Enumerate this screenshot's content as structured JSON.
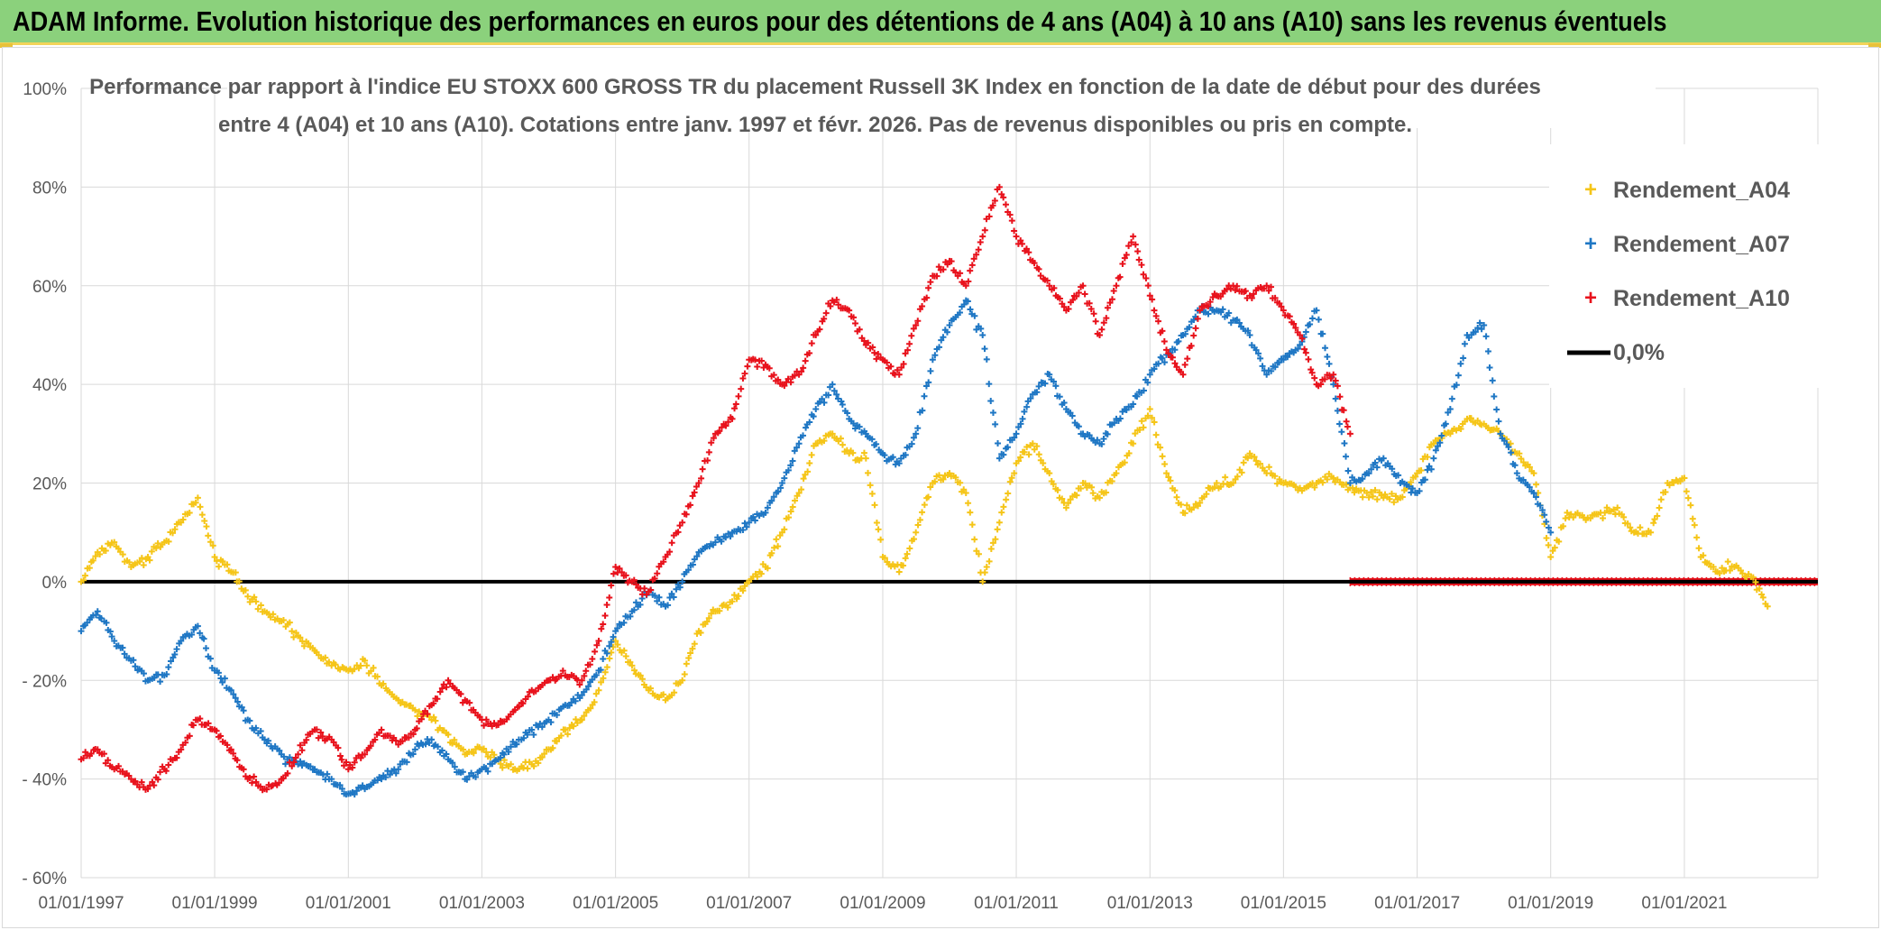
{
  "banner": {
    "title": "ADAM Informe. Evolution historique des performances en euros pour des détentions de 4 ans (A04) à 10 ans (A10) sans les revenus éventuels"
  },
  "colors": {
    "banner_bg": "#8bd17c",
    "banner_border": "#f2d45a",
    "a04": "#f5c518",
    "a07": "#1f77c4",
    "a10": "#e8121c",
    "zero_line": "#000000",
    "grid": "#d9d9d9",
    "text": "#595959"
  },
  "chart_data": {
    "type": "scatter",
    "title_line1": "Performance par rapport à l'indice EU STOXX 600 GROSS TR  du placement Russell 3K Index en fonction de la date de début pour des durées",
    "title_line2": "entre 4 (A04) et 10 ans (A10). Cotations entre janv. 1997 et févr. 2026. Pas de revenus disponibles ou pris en compte.",
    "xlim": [
      "1997-01-01",
      "2023-01-01"
    ],
    "ylim": [
      -0.6,
      1.0
    ],
    "x_ticks": [
      "01/01/1997",
      "01/01/1999",
      "01/01/2001",
      "01/01/2003",
      "01/01/2005",
      "01/01/2007",
      "01/01/2009",
      "01/01/2011",
      "01/01/2013",
      "01/01/2015",
      "01/01/2017",
      "01/01/2019",
      "01/01/2021"
    ],
    "y_ticks": [
      {
        "value": 1.0,
        "label": "100%"
      },
      {
        "value": 0.8,
        "label": "80%"
      },
      {
        "value": 0.6,
        "label": "60%"
      },
      {
        "value": 0.4,
        "label": "40%"
      },
      {
        "value": 0.2,
        "label": "20%"
      },
      {
        "value": 0.0,
        "label": "0%"
      },
      {
        "value": -0.2,
        "label": "- 20%"
      },
      {
        "value": -0.4,
        "label": "- 40%"
      },
      {
        "value": -0.6,
        "label": "- 60%"
      }
    ],
    "grid": "both",
    "legend_position": "top-right",
    "reference_line": {
      "name": "0,0%",
      "value": 0.0
    },
    "series": [
      {
        "name": "Rendement_A04",
        "color": "#f5c518",
        "x": [
          "1997-01-01",
          "1997-04-01",
          "1997-07-01",
          "1997-10-01",
          "1998-01-01",
          "1998-04-01",
          "1998-07-01",
          "1998-10-01",
          "1999-01-01",
          "1999-04-01",
          "1999-07-01",
          "1999-10-01",
          "2000-01-01",
          "2000-04-01",
          "2000-07-01",
          "2000-10-01",
          "2001-01-01",
          "2001-04-01",
          "2001-07-01",
          "2001-10-01",
          "2002-01-01",
          "2002-04-01",
          "2002-07-01",
          "2002-10-01",
          "2003-01-01",
          "2003-04-01",
          "2003-07-01",
          "2003-10-01",
          "2004-01-01",
          "2004-04-01",
          "2004-07-01",
          "2004-10-01",
          "2005-01-01",
          "2005-04-01",
          "2005-07-01",
          "2005-10-01",
          "2006-01-01",
          "2006-04-01",
          "2006-07-01",
          "2006-10-01",
          "2007-01-01",
          "2007-04-01",
          "2007-07-01",
          "2007-10-01",
          "2008-01-01",
          "2008-04-01",
          "2008-07-01",
          "2008-10-01",
          "2009-01-01",
          "2009-04-01",
          "2009-07-01",
          "2009-10-01",
          "2010-01-01",
          "2010-04-01",
          "2010-07-01",
          "2010-10-01",
          "2011-01-01",
          "2011-04-01",
          "2011-07-01",
          "2011-10-01",
          "2012-01-01",
          "2012-04-01",
          "2012-07-01",
          "2012-10-01",
          "2013-01-01",
          "2013-04-01",
          "2013-07-01",
          "2013-10-01",
          "2014-01-01",
          "2014-04-01",
          "2014-07-01",
          "2014-10-01",
          "2015-01-01",
          "2015-04-01",
          "2015-07-01",
          "2015-10-01",
          "2016-01-01",
          "2016-04-01",
          "2016-07-01",
          "2016-10-01",
          "2017-01-01",
          "2017-04-01",
          "2017-07-01",
          "2017-10-01",
          "2018-01-01",
          "2018-04-01",
          "2018-07-01",
          "2018-10-01",
          "2019-01-01",
          "2019-04-01",
          "2019-07-01",
          "2019-10-01",
          "2020-01-01",
          "2020-04-01",
          "2020-07-01",
          "2020-10-01",
          "2021-01-01",
          "2021-04-01",
          "2021-07-01",
          "2021-10-01",
          "2022-01-01",
          "2022-04-01"
        ],
        "y": [
          0.0,
          0.06,
          0.08,
          0.03,
          0.05,
          0.08,
          0.12,
          0.17,
          0.05,
          0.02,
          -0.03,
          -0.06,
          -0.08,
          -0.11,
          -0.14,
          -0.17,
          -0.18,
          -0.16,
          -0.21,
          -0.24,
          -0.26,
          -0.28,
          -0.31,
          -0.35,
          -0.34,
          -0.36,
          -0.38,
          -0.37,
          -0.34,
          -0.3,
          -0.28,
          -0.22,
          -0.12,
          -0.17,
          -0.22,
          -0.24,
          -0.2,
          -0.1,
          -0.06,
          -0.04,
          0.0,
          0.03,
          0.1,
          0.18,
          0.28,
          0.3,
          0.26,
          0.25,
          0.05,
          0.02,
          0.1,
          0.2,
          0.22,
          0.18,
          0.0,
          0.12,
          0.24,
          0.28,
          0.22,
          0.15,
          0.2,
          0.17,
          0.22,
          0.28,
          0.35,
          0.22,
          0.14,
          0.16,
          0.2,
          0.2,
          0.26,
          0.22,
          0.2,
          0.19,
          0.2,
          0.21,
          0.19,
          0.18,
          0.17,
          0.17,
          0.22,
          0.28,
          0.3,
          0.33,
          0.32,
          0.3,
          0.26,
          0.22,
          0.05,
          0.14,
          0.13,
          0.14,
          0.15,
          0.1,
          0.1,
          0.2,
          0.21,
          0.05,
          0.02,
          0.03,
          0.01,
          -0.05
        ]
      },
      {
        "name": "Rendement_A07",
        "color": "#1f77c4",
        "x": [
          "1997-01-01",
          "1997-04-01",
          "1997-07-01",
          "1997-10-01",
          "1998-01-01",
          "1998-04-01",
          "1998-07-01",
          "1998-10-01",
          "1999-01-01",
          "1999-04-01",
          "1999-07-01",
          "1999-10-01",
          "2000-01-01",
          "2000-04-01",
          "2000-07-01",
          "2000-10-01",
          "2001-01-01",
          "2001-04-01",
          "2001-07-01",
          "2001-10-01",
          "2002-01-01",
          "2002-04-01",
          "2002-07-01",
          "2002-10-01",
          "2003-01-01",
          "2003-04-01",
          "2003-07-01",
          "2003-10-01",
          "2004-01-01",
          "2004-04-01",
          "2004-07-01",
          "2004-10-01",
          "2005-01-01",
          "2005-04-01",
          "2005-07-01",
          "2005-10-01",
          "2006-01-01",
          "2006-04-01",
          "2006-07-01",
          "2006-10-01",
          "2007-01-01",
          "2007-04-01",
          "2007-07-01",
          "2007-10-01",
          "2008-01-01",
          "2008-04-01",
          "2008-07-01",
          "2008-10-01",
          "2009-01-01",
          "2009-04-01",
          "2009-07-01",
          "2009-10-01",
          "2010-01-01",
          "2010-04-01",
          "2010-07-01",
          "2010-10-01",
          "2011-01-01",
          "2011-04-01",
          "2011-07-01",
          "2011-10-01",
          "2012-01-01",
          "2012-04-01",
          "2012-07-01",
          "2012-10-01",
          "2013-01-01",
          "2013-04-01",
          "2013-07-01",
          "2013-10-01",
          "2014-01-01",
          "2014-04-01",
          "2014-07-01",
          "2014-10-01",
          "2015-01-01",
          "2015-04-01",
          "2015-07-01",
          "2015-10-01",
          "2016-01-01",
          "2016-04-01",
          "2016-07-01",
          "2016-10-01",
          "2017-01-01",
          "2017-04-01",
          "2017-07-01",
          "2017-10-01",
          "2018-01-01",
          "2018-04-01",
          "2018-07-01",
          "2018-10-01",
          "2019-01-01"
        ],
        "y": [
          -0.1,
          -0.06,
          -0.12,
          -0.16,
          -0.2,
          -0.19,
          -0.12,
          -0.09,
          -0.18,
          -0.22,
          -0.28,
          -0.32,
          -0.35,
          -0.37,
          -0.38,
          -0.4,
          -0.43,
          -0.42,
          -0.4,
          -0.38,
          -0.34,
          -0.32,
          -0.36,
          -0.4,
          -0.38,
          -0.36,
          -0.33,
          -0.3,
          -0.28,
          -0.25,
          -0.23,
          -0.18,
          -0.1,
          -0.06,
          -0.02,
          -0.05,
          0.0,
          0.06,
          0.08,
          0.1,
          0.12,
          0.14,
          0.2,
          0.28,
          0.35,
          0.4,
          0.33,
          0.3,
          0.26,
          0.24,
          0.3,
          0.45,
          0.52,
          0.57,
          0.5,
          0.25,
          0.3,
          0.38,
          0.42,
          0.35,
          0.3,
          0.28,
          0.33,
          0.36,
          0.42,
          0.46,
          0.5,
          0.55,
          0.55,
          0.53,
          0.5,
          0.42,
          0.45,
          0.48,
          0.55,
          0.4,
          0.2,
          0.22,
          0.25,
          0.2,
          0.18,
          0.25,
          0.35,
          0.5,
          0.52,
          0.3,
          0.22,
          0.18,
          0.1
        ]
      },
      {
        "name": "Rendement_A10",
        "color": "#e8121c",
        "x": [
          "1997-01-01",
          "1997-04-01",
          "1997-07-01",
          "1997-10-01",
          "1998-01-01",
          "1998-04-01",
          "1998-07-01",
          "1998-10-01",
          "1999-01-01",
          "1999-04-01",
          "1999-07-01",
          "1999-10-01",
          "2000-01-01",
          "2000-04-01",
          "2000-07-01",
          "2000-10-01",
          "2001-01-01",
          "2001-04-01",
          "2001-07-01",
          "2001-10-01",
          "2002-01-01",
          "2002-04-01",
          "2002-07-01",
          "2002-10-01",
          "2003-01-01",
          "2003-04-01",
          "2003-07-01",
          "2003-10-01",
          "2004-01-01",
          "2004-04-01",
          "2004-07-01",
          "2004-10-01",
          "2005-01-01",
          "2005-04-01",
          "2005-07-01",
          "2005-10-01",
          "2006-01-01",
          "2006-04-01",
          "2006-07-01",
          "2006-10-01",
          "2007-01-01",
          "2007-04-01",
          "2007-07-01",
          "2007-10-01",
          "2008-01-01",
          "2008-04-01",
          "2008-07-01",
          "2008-10-01",
          "2009-01-01",
          "2009-04-01",
          "2009-07-01",
          "2009-10-01",
          "2010-01-01",
          "2010-04-01",
          "2010-07-01",
          "2010-10-01",
          "2011-01-01",
          "2011-04-01",
          "2011-07-01",
          "2011-10-01",
          "2012-01-01",
          "2012-04-01",
          "2012-07-01",
          "2012-10-01",
          "2013-01-01",
          "2013-04-01",
          "2013-07-01",
          "2013-10-01",
          "2014-01-01",
          "2014-04-01",
          "2014-07-01",
          "2014-10-01",
          "2015-01-01",
          "2015-04-01",
          "2015-07-01",
          "2015-10-01",
          "2016-01-01"
        ],
        "y": [
          -0.36,
          -0.34,
          -0.38,
          -0.4,
          -0.42,
          -0.38,
          -0.34,
          -0.28,
          -0.3,
          -0.34,
          -0.4,
          -0.42,
          -0.4,
          -0.35,
          -0.3,
          -0.32,
          -0.38,
          -0.35,
          -0.3,
          -0.33,
          -0.3,
          -0.25,
          -0.2,
          -0.24,
          -0.28,
          -0.29,
          -0.26,
          -0.22,
          -0.2,
          -0.19,
          -0.2,
          -0.12,
          0.03,
          0.0,
          -0.02,
          0.05,
          0.12,
          0.2,
          0.3,
          0.33,
          0.45,
          0.44,
          0.4,
          0.42,
          0.5,
          0.57,
          0.55,
          0.48,
          0.45,
          0.42,
          0.52,
          0.62,
          0.65,
          0.6,
          0.7,
          0.8,
          0.7,
          0.65,
          0.6,
          0.55,
          0.6,
          0.5,
          0.6,
          0.7,
          0.58,
          0.47,
          0.42,
          0.55,
          0.58,
          0.6,
          0.58,
          0.6,
          0.55,
          0.5,
          0.4,
          0.42,
          0.3
        ]
      }
    ],
    "zero_markers": {
      "color": "#e8121c",
      "value": 0.0,
      "x_start": "2016-01-01",
      "x_end": "2023-01-01"
    }
  },
  "legend": {
    "items": [
      {
        "label": "Rendement_A04",
        "kind": "plus-marker",
        "color": "#f5c518"
      },
      {
        "label": "Rendement_A07",
        "kind": "plus-marker",
        "color": "#1f77c4"
      },
      {
        "label": "Rendement_A10",
        "kind": "plus-marker",
        "color": "#e8121c"
      },
      {
        "label": "0,0%",
        "kind": "line",
        "color": "#000000"
      }
    ]
  }
}
